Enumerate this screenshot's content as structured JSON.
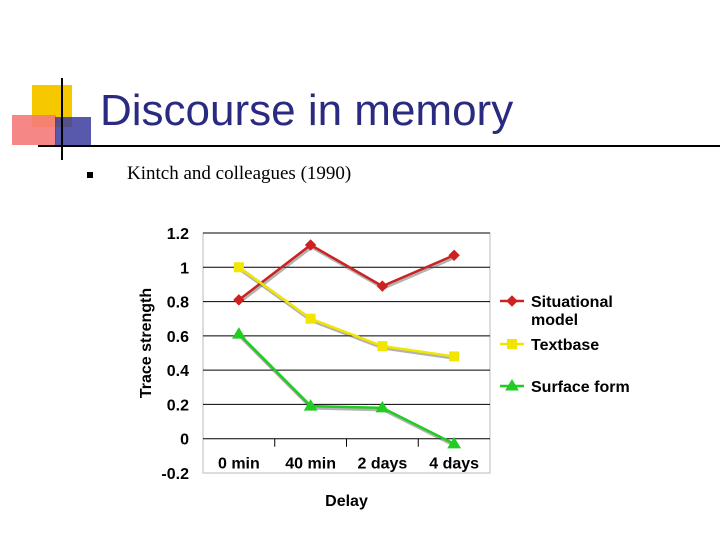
{
  "slide": {
    "title": "Discourse in memory",
    "bullet": "Kintch and colleagues (1990)",
    "title_color": "#2a2a80"
  },
  "chart_data": {
    "type": "line",
    "categories": [
      "0 min",
      "40 min",
      "2 days",
      "4 days"
    ],
    "xlabel": "Delay",
    "ylabel": "Trace strength",
    "ylim": [
      -0.2,
      1.2
    ],
    "yticks": [
      "1.2",
      "1",
      "0.8",
      "0.6",
      "0.4",
      "0.2",
      "0",
      "-0.2"
    ],
    "ytick_values": [
      1.2,
      1,
      0.8,
      0.6,
      0.4,
      0.2,
      0,
      -0.2
    ],
    "grid": true,
    "legend_position": "right",
    "series": [
      {
        "name": "Situational model",
        "name_lines": [
          "Situational",
          "model"
        ],
        "values": [
          0.81,
          1.13,
          0.89,
          1.07
        ],
        "color": "#cc2222",
        "marker": "diamond"
      },
      {
        "name": "Textbase",
        "name_lines": [
          "Textbase"
        ],
        "values": [
          1.0,
          0.7,
          0.54,
          0.48
        ],
        "color": "#f2e600",
        "marker": "square"
      },
      {
        "name": "Surface form",
        "name_lines": [
          "Surface form"
        ],
        "values": [
          0.61,
          0.19,
          0.18,
          -0.03
        ],
        "color": "#22cc22",
        "marker": "triangle"
      }
    ]
  }
}
